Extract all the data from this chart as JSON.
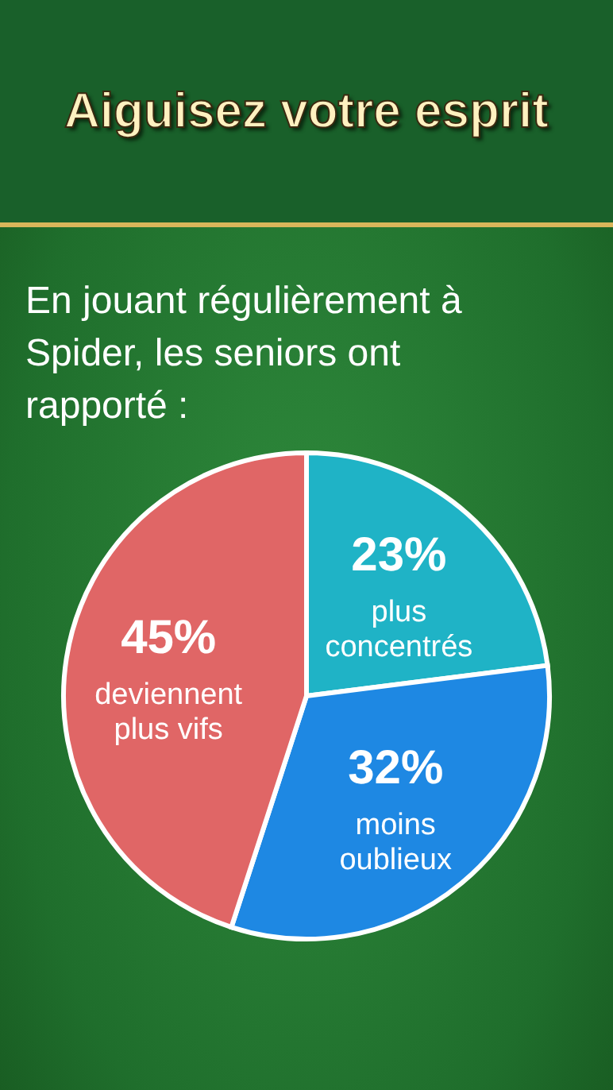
{
  "chart_data": {
    "type": "pie",
    "title": "Aiguisez votre esprit",
    "subtitle": "En jouant régulièrement à Spider, les seniors ont rapporté :",
    "categories": [
      "plus concentrés",
      "moins oublieux",
      "deviennent plus vifs"
    ],
    "values": [
      23,
      32,
      45
    ],
    "colors": [
      "#1fb3c6",
      "#1e88e3",
      "#e06666"
    ],
    "value_labels": [
      "23%",
      "32%",
      "45%"
    ]
  }
}
